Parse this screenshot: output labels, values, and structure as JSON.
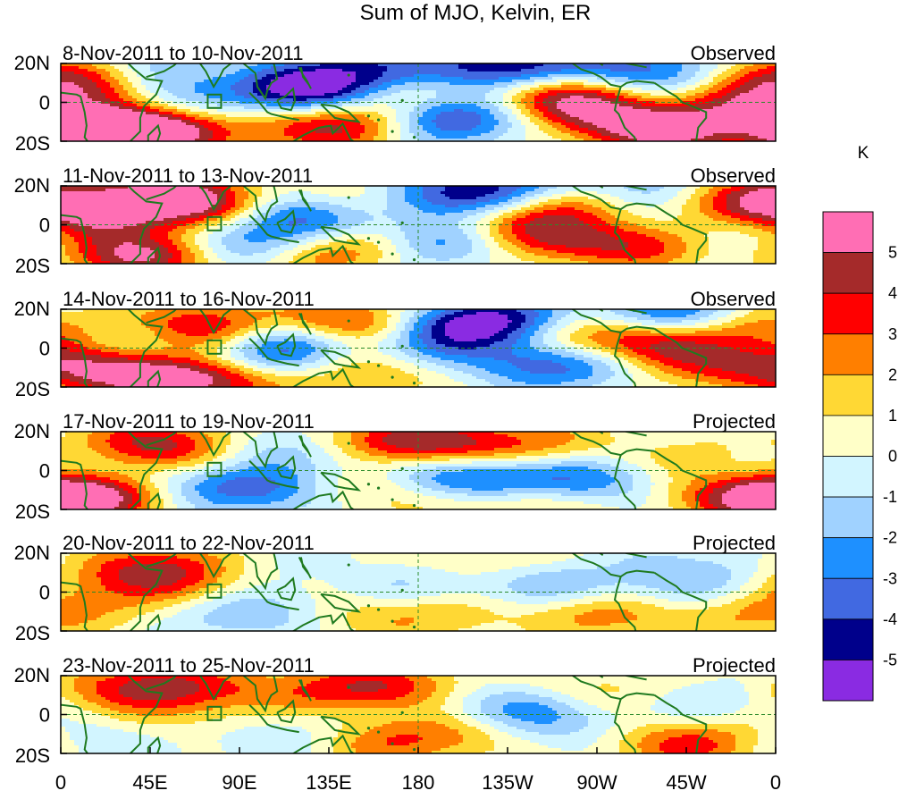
{
  "chart_data": {
    "type": "heatmap",
    "title": "Sum of MJO, Kelvin, ER",
    "units": "K",
    "x_ticks": [
      "0",
      "45E",
      "90E",
      "135E",
      "180",
      "135W",
      "90W",
      "45W",
      "0"
    ],
    "y_ticks": [
      "20N",
      "0",
      "20S"
    ],
    "lat_range": [
      -20,
      20
    ],
    "lon_range": [
      0,
      360
    ],
    "colorbar": {
      "levels": [
        "5",
        "4",
        "3",
        "2",
        "1",
        "0",
        "-1",
        "-2",
        "-3",
        "-4",
        "-5"
      ],
      "colors": [
        "#ff6eb4",
        "#a52a2a",
        "#ff0000",
        "#ff7f00",
        "#ffd834",
        "#ffffc8",
        "#d2f5ff",
        "#a0d2ff",
        "#1e90ff",
        "#4169e1",
        "#00008b",
        "#8a2be2"
      ]
    },
    "panels": [
      {
        "dates": "8-Nov-2011 to 10-Nov-2011",
        "type": "Observed",
        "blobs": [
          {
            "lon": 10,
            "lat": 13,
            "v": 4.5
          },
          {
            "lon": 22,
            "lat": -14,
            "v": 5.5
          },
          {
            "lon": 45,
            "lat": -15,
            "v": 5.5
          },
          {
            "lon": 58,
            "lat": 16,
            "v": -5.5
          },
          {
            "lon": 80,
            "lat": 15,
            "v": 5.5
          },
          {
            "lon": 100,
            "lat": 12,
            "v": -3
          },
          {
            "lon": 125,
            "lat": 6,
            "v": -5.5
          },
          {
            "lon": 155,
            "lat": 17,
            "v": -3.5
          },
          {
            "lon": 150,
            "lat": -10,
            "v": 4
          },
          {
            "lon": 170,
            "lat": 5,
            "v": 2.5
          },
          {
            "lon": 193,
            "lat": -8,
            "v": -5.5
          },
          {
            "lon": 225,
            "lat": 17,
            "v": -5.5
          },
          {
            "lon": 250,
            "lat": 5,
            "v": 4.5
          },
          {
            "lon": 270,
            "lat": -5,
            "v": 3
          },
          {
            "lon": 290,
            "lat": 17,
            "v": -3.5
          },
          {
            "lon": 305,
            "lat": -14,
            "v": 5.5
          },
          {
            "lon": 340,
            "lat": 2,
            "v": 4.5
          },
          {
            "lon": 320,
            "lat": 5,
            "v": -2.5
          },
          {
            "lon": 120,
            "lat": -14,
            "v": 2
          },
          {
            "lon": 60,
            "lat": -2,
            "v": -1.5
          }
        ]
      },
      {
        "dates": "11-Nov-2011 to 13-Nov-2011",
        "type": "Observed",
        "blobs": [
          {
            "lon": 15,
            "lat": 5,
            "v": 4
          },
          {
            "lon": 40,
            "lat": -15,
            "v": 5.5
          },
          {
            "lon": 75,
            "lat": 12,
            "v": 5.5
          },
          {
            "lon": 55,
            "lat": 14,
            "v": 3
          },
          {
            "lon": 100,
            "lat": 12,
            "v": -3
          },
          {
            "lon": 95,
            "lat": -10,
            "v": -4
          },
          {
            "lon": 130,
            "lat": 4,
            "v": -3.5
          },
          {
            "lon": 150,
            "lat": 12,
            "v": 3.5
          },
          {
            "lon": 160,
            "lat": -10,
            "v": 3.5
          },
          {
            "lon": 190,
            "lat": -8,
            "v": -5.5
          },
          {
            "lon": 218,
            "lat": 17,
            "v": -5.5
          },
          {
            "lon": 215,
            "lat": 0,
            "v": 3
          },
          {
            "lon": 255,
            "lat": 12,
            "v": 4.5
          },
          {
            "lon": 245,
            "lat": -8,
            "v": 3
          },
          {
            "lon": 290,
            "lat": 17,
            "v": -3.5
          },
          {
            "lon": 300,
            "lat": -10,
            "v": 4
          },
          {
            "lon": 345,
            "lat": 14,
            "v": 4.5
          },
          {
            "lon": 330,
            "lat": -5,
            "v": -2.5
          },
          {
            "lon": 180,
            "lat": 12,
            "v": -2.5
          },
          {
            "lon": 120,
            "lat": -14,
            "v": 2.5
          }
        ]
      },
      {
        "dates": "14-Nov-2011 to 16-Nov-2011",
        "type": "Observed",
        "blobs": [
          {
            "lon": 10,
            "lat": -8,
            "v": 2.5
          },
          {
            "lon": 30,
            "lat": -13,
            "v": 3
          },
          {
            "lon": 70,
            "lat": 10,
            "v": 5.5
          },
          {
            "lon": 72,
            "lat": -16,
            "v": 5.5
          },
          {
            "lon": 100,
            "lat": -5,
            "v": -3
          },
          {
            "lon": 120,
            "lat": 5,
            "v": -3.5
          },
          {
            "lon": 148,
            "lat": 12,
            "v": 5.5
          },
          {
            "lon": 160,
            "lat": -10,
            "v": 4
          },
          {
            "lon": 180,
            "lat": -5,
            "v": -4
          },
          {
            "lon": 190,
            "lat": 10,
            "v": -3
          },
          {
            "lon": 205,
            "lat": -5,
            "v": 2.5
          },
          {
            "lon": 220,
            "lat": 13,
            "v": -5.5
          },
          {
            "lon": 230,
            "lat": -6,
            "v": -3.5
          },
          {
            "lon": 250,
            "lat": 8,
            "v": 3
          },
          {
            "lon": 270,
            "lat": -8,
            "v": -3
          },
          {
            "lon": 290,
            "lat": 2,
            "v": 4.5
          },
          {
            "lon": 320,
            "lat": -10,
            "v": 2.5
          },
          {
            "lon": 305,
            "lat": 17,
            "v": -4
          },
          {
            "lon": 350,
            "lat": 10,
            "v": 3
          },
          {
            "lon": 40,
            "lat": 5,
            "v": -2.5
          }
        ]
      },
      {
        "dates": "17-Nov-2011 to 19-Nov-2011",
        "type": "Projected",
        "blobs": [
          {
            "lon": 5,
            "lat": -12,
            "v": 4.5
          },
          {
            "lon": 20,
            "lat": -14,
            "v": 2.5
          },
          {
            "lon": 50,
            "lat": 14,
            "v": 4.5
          },
          {
            "lon": 65,
            "lat": -5,
            "v": -2
          },
          {
            "lon": 100,
            "lat": 12,
            "v": -2
          },
          {
            "lon": 100,
            "lat": -10,
            "v": -3
          },
          {
            "lon": 140,
            "lat": 10,
            "v": -2.5
          },
          {
            "lon": 150,
            "lat": 14,
            "v": 3.5
          },
          {
            "lon": 160,
            "lat": -10,
            "v": 2
          },
          {
            "lon": 180,
            "lat": 14,
            "v": 2.5
          },
          {
            "lon": 190,
            "lat": -2,
            "v": -2
          },
          {
            "lon": 220,
            "lat": -5,
            "v": -3.5
          },
          {
            "lon": 230,
            "lat": -16,
            "v": 2.5
          },
          {
            "lon": 240,
            "lat": 14,
            "v": 2
          },
          {
            "lon": 270,
            "lat": -5,
            "v": -2.5
          },
          {
            "lon": 320,
            "lat": 5,
            "v": 2
          },
          {
            "lon": 340,
            "lat": -14,
            "v": 2.5
          },
          {
            "lon": 350,
            "lat": 0,
            "v": -1.5
          },
          {
            "lon": 80,
            "lat": 5,
            "v": 1.5
          },
          {
            "lon": 205,
            "lat": 12,
            "v": 2
          }
        ]
      },
      {
        "dates": "20-Nov-2011 to 22-Nov-2011",
        "type": "Projected",
        "blobs": [
          {
            "lon": 50,
            "lat": 13,
            "v": 3.5
          },
          {
            "lon": 30,
            "lat": 5,
            "v": 1.5
          },
          {
            "lon": 95,
            "lat": -10,
            "v": -2.5
          },
          {
            "lon": 120,
            "lat": 12,
            "v": -1.5
          },
          {
            "lon": 140,
            "lat": 10,
            "v": 2
          },
          {
            "lon": 165,
            "lat": 5,
            "v": -2
          },
          {
            "lon": 150,
            "lat": -12,
            "v": 1.5
          },
          {
            "lon": 195,
            "lat": -12,
            "v": 1.5
          },
          {
            "lon": 220,
            "lat": 14,
            "v": 1.8
          },
          {
            "lon": 240,
            "lat": 5,
            "v": -2.5
          },
          {
            "lon": 280,
            "lat": -10,
            "v": 3.5
          },
          {
            "lon": 300,
            "lat": -4,
            "v": -2
          },
          {
            "lon": 320,
            "lat": 10,
            "v": -1.5
          },
          {
            "lon": 345,
            "lat": -10,
            "v": 1.5
          },
          {
            "lon": 10,
            "lat": -10,
            "v": 1.2
          },
          {
            "lon": 75,
            "lat": 0,
            "v": 1.2
          }
        ]
      },
      {
        "dates": "23-Nov-2011 to 25-Nov-2011",
        "type": "Projected",
        "blobs": [
          {
            "lon": 50,
            "lat": 15,
            "v": 3.5
          },
          {
            "lon": 25,
            "lat": 12,
            "v": 1.5
          },
          {
            "lon": 110,
            "lat": 12,
            "v": 1.5
          },
          {
            "lon": 115,
            "lat": -10,
            "v": -1.5
          },
          {
            "lon": 150,
            "lat": 14,
            "v": 2.5
          },
          {
            "lon": 180,
            "lat": 14,
            "v": 1.8
          },
          {
            "lon": 160,
            "lat": -14,
            "v": 2.5
          },
          {
            "lon": 200,
            "lat": -10,
            "v": 1.8
          },
          {
            "lon": 225,
            "lat": 5,
            "v": -2.5
          },
          {
            "lon": 255,
            "lat": -5,
            "v": -1.5
          },
          {
            "lon": 270,
            "lat": 12,
            "v": 1.8
          },
          {
            "lon": 315,
            "lat": -15,
            "v": 3.5
          },
          {
            "lon": 330,
            "lat": 5,
            "v": -1.5
          },
          {
            "lon": 10,
            "lat": -10,
            "v": -1.5
          },
          {
            "lon": 70,
            "lat": -2,
            "v": 1.2
          },
          {
            "lon": 350,
            "lat": -5,
            "v": 1.2
          }
        ]
      }
    ]
  }
}
